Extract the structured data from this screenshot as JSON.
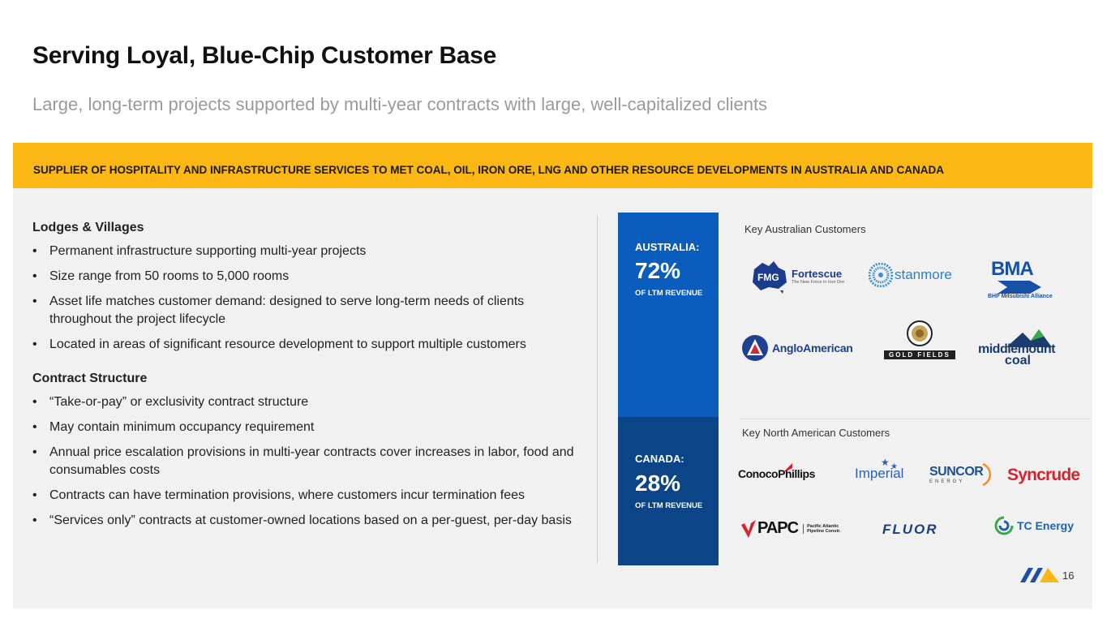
{
  "header": {
    "title": "Serving Loyal, Blue-Chip Customer Base",
    "subtitle": "Large, long-term projects supported by multi-year contracts with large, well-capitalized clients"
  },
  "banner": {
    "text": "SUPPLIER OF HOSPITALITY AND INFRASTRUCTURE SERVICES TO MET COAL, OIL, IRON ORE, LNG AND OTHER RESOURCE DEVELOPMENTS IN AUSTRALIA AND CANADA",
    "color": "#fbb714"
  },
  "lodges": {
    "heading": "Lodges & Villages",
    "bullets": [
      "Permanent infrastructure supporting multi-year projects",
      "Size range from 50 rooms to 5,000 rooms",
      "Asset life matches customer demand: designed to serve long-term needs of clients throughout the project lifecycle",
      "Located in areas of significant resource development to support multiple customers"
    ]
  },
  "contract": {
    "heading": "Contract Structure",
    "bullets": [
      "“Take-or-pay” or exclusivity contract structure",
      "May contain minimum occupancy requirement",
      "Annual price escalation provisions in multi-year contracts cover increases in labor, food and consumables costs",
      "Contracts can have termination provisions, where customers incur termination fees",
      "“Services only” contracts at customer-owned locations based on a per-guest, per-day basis"
    ]
  },
  "australia": {
    "region": "AUSTRALIA:",
    "percent": "72%",
    "caption": "OF LTM REVENUE",
    "color": "#0a5cbd",
    "customers_heading": "Key Australian Customers",
    "logos": {
      "fmg": "FMG",
      "fortescue": "Fortescue",
      "fortescue_tag": "The New Force in Iron Ore",
      "stanmore": "stanmore",
      "bma": "BMA",
      "bma_tag": "BHP Mitsubishi Alliance",
      "anglo": "AngloAmerican",
      "goldfields": "GOLD FIELDS",
      "middlemount": "middlemount",
      "middlemount2": "coal"
    }
  },
  "canada": {
    "region": "CANADA:",
    "percent": "28%",
    "caption": "OF LTM REVENUE",
    "color": "#0c4587",
    "customers_heading": "Key North American Customers",
    "logos": {
      "conoco": "ConocoPhillips",
      "imperial": "Imperial",
      "suncor": "SUNCOR",
      "suncor_tag": "ENERGY",
      "syncrude": "Syncrude",
      "papc": "PAPC",
      "papc_tag1": "Pacific Atlantic",
      "papc_tag2": "Pipeline Constr.",
      "fluor": "FLUOR",
      "tc": "TC Energy"
    }
  },
  "footer": {
    "page_number": "16"
  }
}
